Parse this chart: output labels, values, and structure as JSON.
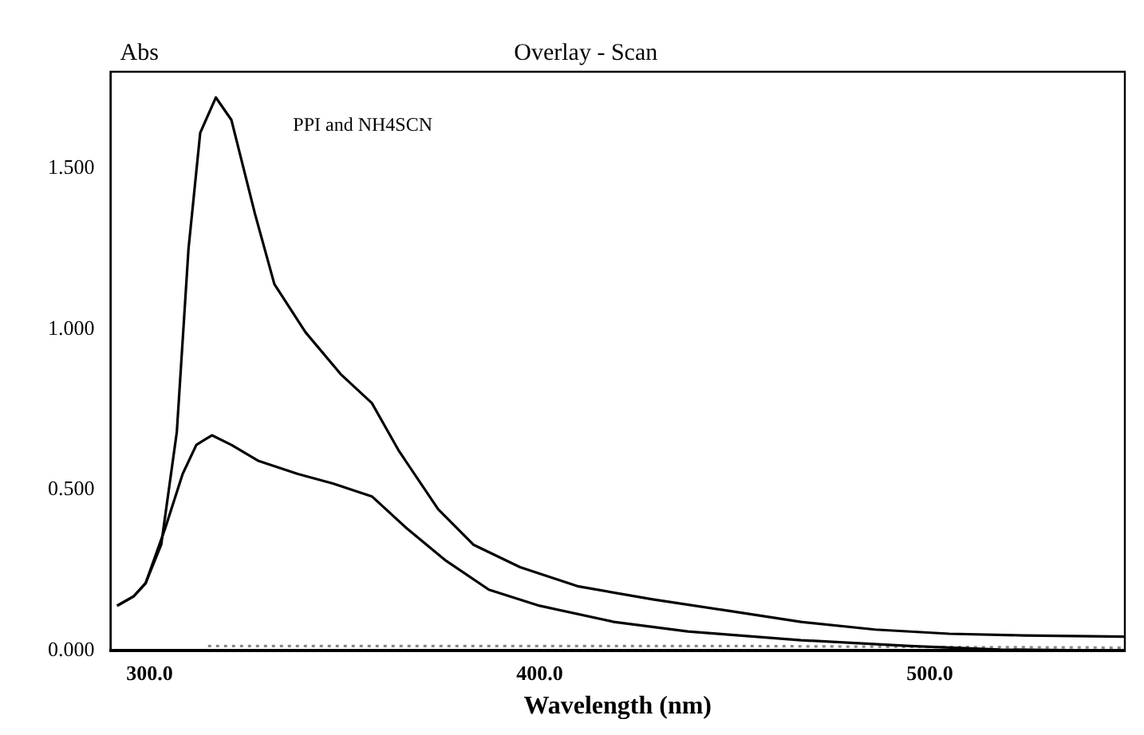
{
  "chart_data": {
    "type": "line",
    "title": "Overlay - Scan",
    "xlabel": "Wavelength (nm)",
    "ylabel": "Abs",
    "annotations": [
      "PPI and NH4SCN"
    ],
    "xlim": [
      290,
      550
    ],
    "xticks": [
      {
        "value": 300,
        "label": "300.0"
      },
      {
        "value": 400,
        "label": "400.0"
      },
      {
        "value": 500,
        "label": "500.0"
      }
    ],
    "ylim": [
      0,
      1.8
    ],
    "yticks": [
      {
        "value": 0,
        "label": "0.000"
      },
      {
        "value": 0.5,
        "label": "0.500"
      },
      {
        "value": 1,
        "label": "1.000"
      },
      {
        "value": 1.5,
        "label": "1.500"
      }
    ],
    "grid": false,
    "legend": false,
    "marker": "none",
    "series": [
      {
        "color": "#000000",
        "line_style": "solid",
        "x": [
          291.7,
          296,
          299,
          303,
          307,
          310,
          313,
          317,
          321,
          327,
          332,
          340,
          349,
          357,
          364,
          374,
          383,
          395,
          410,
          429,
          448,
          467,
          486,
          505,
          524,
          550
        ],
        "values": [
          0.14,
          0.17,
          0.21,
          0.33,
          0.68,
          1.25,
          1.61,
          1.72,
          1.65,
          1.36,
          1.14,
          0.99,
          0.86,
          0.77,
          0.62,
          0.44,
          0.33,
          0.26,
          0.2,
          0.16,
          0.125,
          0.09,
          0.066,
          0.053,
          0.048,
          0.044
        ]
      },
      {
        "color": "#000000",
        "line_style": "solid",
        "x": [
          291.7,
          296,
          299,
          304,
          308.5,
          312,
          316,
          321,
          328,
          338,
          347,
          357,
          366,
          376,
          387,
          400,
          419,
          438,
          467,
          495,
          518,
          550
        ],
        "values": [
          0.14,
          0.17,
          0.21,
          0.38,
          0.55,
          0.64,
          0.67,
          0.64,
          0.59,
          0.55,
          0.52,
          0.48,
          0.38,
          0.28,
          0.19,
          0.14,
          0.09,
          0.06,
          0.033,
          0.015,
          0.004,
          0
        ]
      },
      {
        "color": "#888888",
        "line_style": "dotted",
        "x": [
          315,
          350,
          400,
          450,
          500,
          550
        ],
        "values": [
          0.015,
          0.015,
          0.015,
          0.015,
          0.012,
          0.01
        ]
      }
    ]
  }
}
